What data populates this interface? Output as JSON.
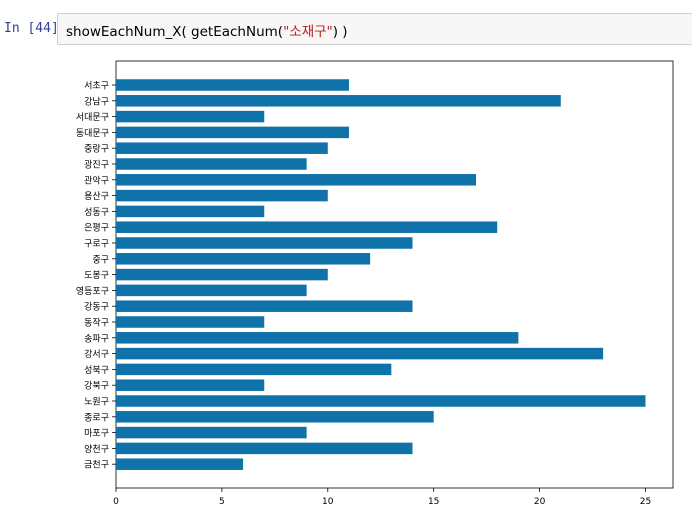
{
  "cell": {
    "prompt": "In [44]:",
    "code_prefix": "showEachNum_X( getEachNum(",
    "code_string": "\"소재구\"",
    "code_suffix": ") )"
  },
  "chart_data": {
    "type": "bar",
    "orientation": "horizontal",
    "categories": [
      "서초구",
      "강남구",
      "서대문구",
      "동대문구",
      "중랑구",
      "광진구",
      "관악구",
      "용산구",
      "성동구",
      "은평구",
      "구로구",
      "중구",
      "도봉구",
      "영등포구",
      "강동구",
      "동작구",
      "송파구",
      "강서구",
      "성북구",
      "강북구",
      "노원구",
      "종로구",
      "마포구",
      "양천구",
      "금천구"
    ],
    "values": [
      11,
      21,
      7,
      11,
      10,
      9,
      17,
      10,
      7,
      18,
      14,
      12,
      10,
      9,
      14,
      7,
      19,
      23,
      13,
      7,
      25,
      15,
      9,
      14,
      6
    ],
    "xlim": [
      0,
      26.3
    ],
    "xticks": [
      0,
      5,
      10,
      15,
      20,
      25
    ],
    "bar_color": "#0f72a8",
    "title": "",
    "xlabel": "",
    "ylabel": "",
    "grid": false
  }
}
